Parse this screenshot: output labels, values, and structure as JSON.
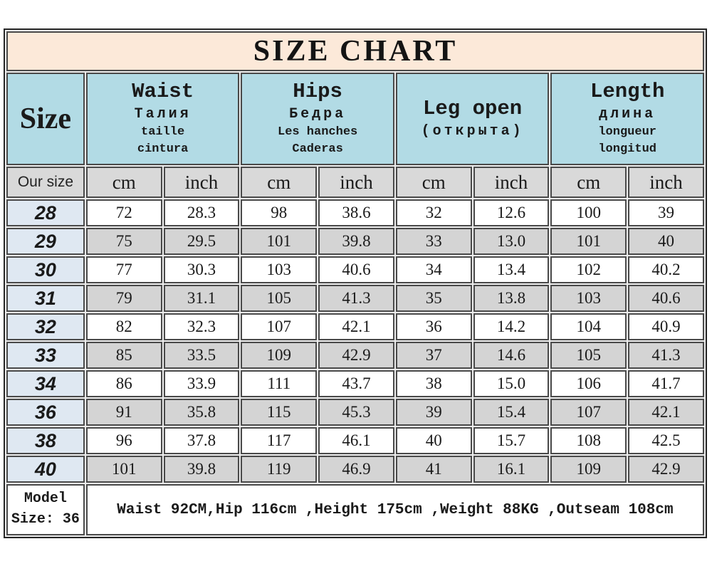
{
  "chart_data": {
    "type": "table",
    "title": "SIZE CHART",
    "size_header": "Size",
    "our_size_label": "Our size",
    "units": [
      "cm",
      "inch",
      "cm",
      "inch",
      "cm",
      "inch",
      "cm",
      "inch"
    ],
    "groups": [
      {
        "name": "Waist",
        "lines": [
          "Талия",
          "taille",
          "cintura"
        ]
      },
      {
        "name": "Hips",
        "lines": [
          "Бедра",
          "Les hanches",
          "Caderas"
        ]
      },
      {
        "name": "Leg open",
        "lines": [
          "(открыта)"
        ]
      },
      {
        "name": "Length",
        "lines": [
          "длина",
          "longueur",
          "longitud"
        ]
      }
    ],
    "rows": [
      {
        "size": "28",
        "values": [
          "72",
          "28.3",
          "98",
          "38.6",
          "32",
          "12.6",
          "100",
          "39"
        ]
      },
      {
        "size": "29",
        "values": [
          "75",
          "29.5",
          "101",
          "39.8",
          "33",
          "13.0",
          "101",
          "40"
        ]
      },
      {
        "size": "30",
        "values": [
          "77",
          "30.3",
          "103",
          "40.6",
          "34",
          "13.4",
          "102",
          "40.2"
        ]
      },
      {
        "size": "31",
        "values": [
          "79",
          "31.1",
          "105",
          "41.3",
          "35",
          "13.8",
          "103",
          "40.6"
        ]
      },
      {
        "size": "32",
        "values": [
          "82",
          "32.3",
          "107",
          "42.1",
          "36",
          "14.2",
          "104",
          "40.9"
        ]
      },
      {
        "size": "33",
        "values": [
          "85",
          "33.5",
          "109",
          "42.9",
          "37",
          "14.6",
          "105",
          "41.3"
        ]
      },
      {
        "size": "34",
        "values": [
          "86",
          "33.9",
          "111",
          "43.7",
          "38",
          "15.0",
          "106",
          "41.7"
        ]
      },
      {
        "size": "36",
        "values": [
          "91",
          "35.8",
          "115",
          "45.3",
          "39",
          "15.4",
          "107",
          "42.1"
        ]
      },
      {
        "size": "38",
        "values": [
          "96",
          "37.8",
          "117",
          "46.1",
          "40",
          "15.7",
          "108",
          "42.5"
        ]
      },
      {
        "size": "40",
        "values": [
          "101",
          "39.8",
          "119",
          "46.9",
          "41",
          "16.1",
          "109",
          "42.9"
        ]
      }
    ],
    "footer": {
      "model_line1": "Model",
      "model_line2": "Size: 36",
      "note": "Waist 92CM,Hip 116cm ,Height 175cm ,Weight 88KG ,Outseam 108cm"
    },
    "colors": {
      "title_bg": "#fce9d9",
      "header_bg": "#b2dbe5",
      "size_col_bg": "#dfe8f2",
      "row_alt_bg": "#d4d4d4",
      "grid": "#4a4a4a",
      "outer_border": "#262626",
      "text": "#1a1a1a"
    }
  }
}
